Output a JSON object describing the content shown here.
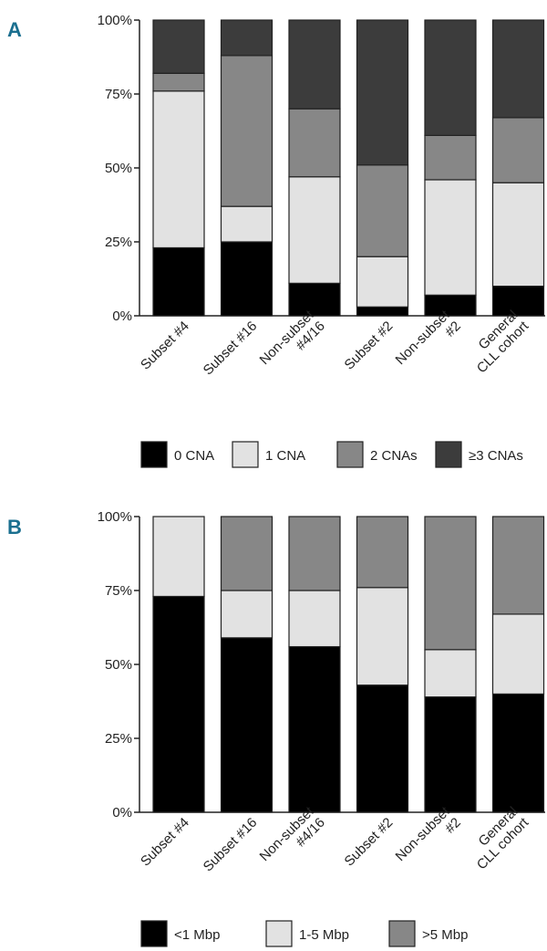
{
  "chart_data": [
    {
      "type": "bar",
      "stacked": true,
      "panel": "A",
      "categories": [
        [
          "Subset #4"
        ],
        [
          "Subset #16"
        ],
        [
          "Non-subset",
          "#4/16"
        ],
        [
          "Subset #2"
        ],
        [
          "Non-subset",
          "#2"
        ],
        [
          "General",
          "CLL cohort"
        ]
      ],
      "y_ticks": [
        "0%",
        "25%",
        "50%",
        "75%",
        "100%"
      ],
      "ylim": [
        0,
        100
      ],
      "series": [
        {
          "name": "0 CNA",
          "color": "#000000",
          "values": [
            23,
            25,
            11,
            3,
            7,
            10
          ]
        },
        {
          "name": "1 CNA",
          "color": "#e2e2e2",
          "values": [
            53,
            12,
            36,
            17,
            39,
            35
          ]
        },
        {
          "name": "2 CNAs",
          "color": "#878787",
          "values": [
            6,
            51,
            23,
            31,
            15,
            22
          ]
        },
        {
          "name": "≥3 CNAs",
          "color": "#3c3c3c",
          "values": [
            18,
            12,
            30,
            49,
            39,
            33
          ]
        }
      ],
      "legend": "bottom"
    },
    {
      "type": "bar",
      "stacked": true,
      "panel": "B",
      "categories": [
        [
          "Subset #4"
        ],
        [
          "Subset #16"
        ],
        [
          "Non-subset",
          "#4/16"
        ],
        [
          "Subset #2"
        ],
        [
          "Non-subset",
          "#2"
        ],
        [
          "General",
          "CLL cohort"
        ]
      ],
      "y_ticks": [
        "0%",
        "25%",
        "50%",
        "75%",
        "100%"
      ],
      "ylim": [
        0,
        100
      ],
      "series": [
        {
          "name": "<1 Mbp",
          "color": "#000000",
          "values": [
            73,
            59,
            56,
            43,
            39,
            40
          ]
        },
        {
          "name": "1-5 Mbp",
          "color": "#e2e2e2",
          "values": [
            27,
            16,
            19,
            33,
            16,
            27
          ]
        },
        {
          "name": ">5 Mbp",
          "color": "#878787",
          "values": [
            0,
            25,
            25,
            24,
            45,
            33
          ]
        }
      ],
      "legend": "bottom"
    }
  ]
}
